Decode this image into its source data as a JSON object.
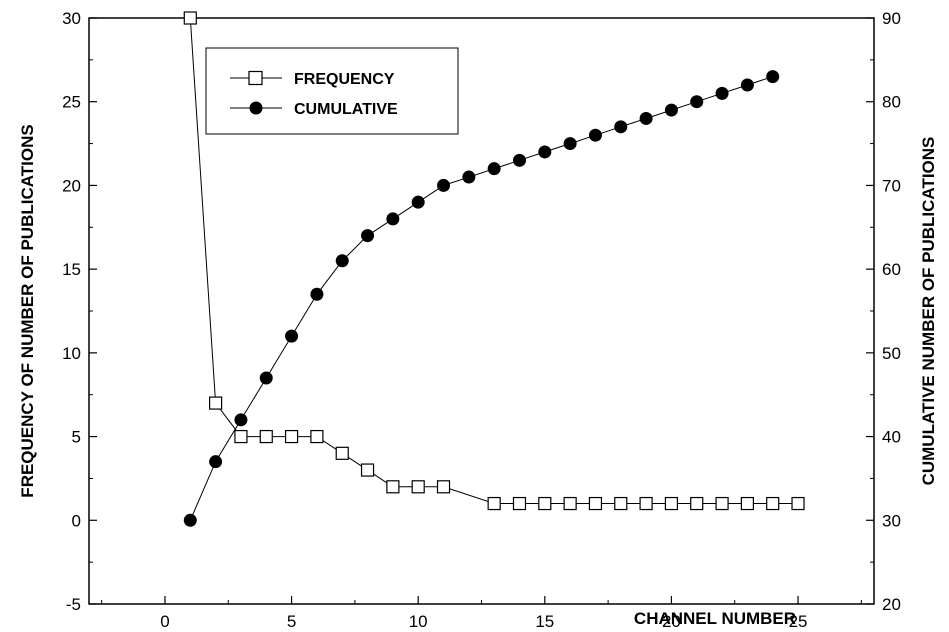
{
  "chart_data": {
    "type": "line",
    "title": "",
    "xlabel": "CHANNEL  NUMBER",
    "ylabel_left": "FREQUENCY  OF  NUMBER  OF  PUBLICATIONS",
    "ylabel_right": "CUMULATIVE  NUMBER  OF PUBLICATIONS",
    "xlim": [
      -3,
      28
    ],
    "ylim_left": [
      -5,
      30
    ],
    "ylim_right": [
      20,
      90
    ],
    "x_ticks": [
      0,
      5,
      10,
      15,
      20,
      25
    ],
    "y_ticks_left": [
      -5,
      0,
      5,
      10,
      15,
      20,
      25,
      30
    ],
    "y_ticks_right": [
      20,
      30,
      40,
      50,
      60,
      70,
      80,
      90
    ],
    "grid": false,
    "legend_position": "top-left",
    "series": [
      {
        "name": "FREQUENCY",
        "axis": "left",
        "marker": "open-square",
        "x": [
          1,
          2,
          3,
          4,
          5,
          6,
          7,
          8,
          9,
          10,
          11,
          13,
          14,
          15,
          16,
          17,
          18,
          19,
          20,
          21,
          22,
          23,
          24,
          25
        ],
        "values": [
          30,
          7,
          5,
          5,
          5,
          5,
          4,
          3,
          2,
          2,
          2,
          1,
          1,
          1,
          1,
          1,
          1,
          1,
          1,
          1,
          1,
          1,
          1,
          1
        ]
      },
      {
        "name": "CUMULATIVE",
        "axis": "right",
        "marker": "filled-circle",
        "x": [
          1,
          2,
          3,
          4,
          5,
          6,
          7,
          8,
          9,
          10,
          11,
          12,
          13,
          14,
          15,
          16,
          17,
          18,
          19,
          20,
          21,
          22,
          23,
          24
        ],
        "values": [
          30,
          37,
          42,
          47,
          52,
          57,
          61,
          64,
          66,
          68,
          70,
          71,
          72,
          73,
          74,
          75,
          76,
          77,
          78,
          79,
          80,
          81,
          82,
          83
        ]
      }
    ]
  }
}
